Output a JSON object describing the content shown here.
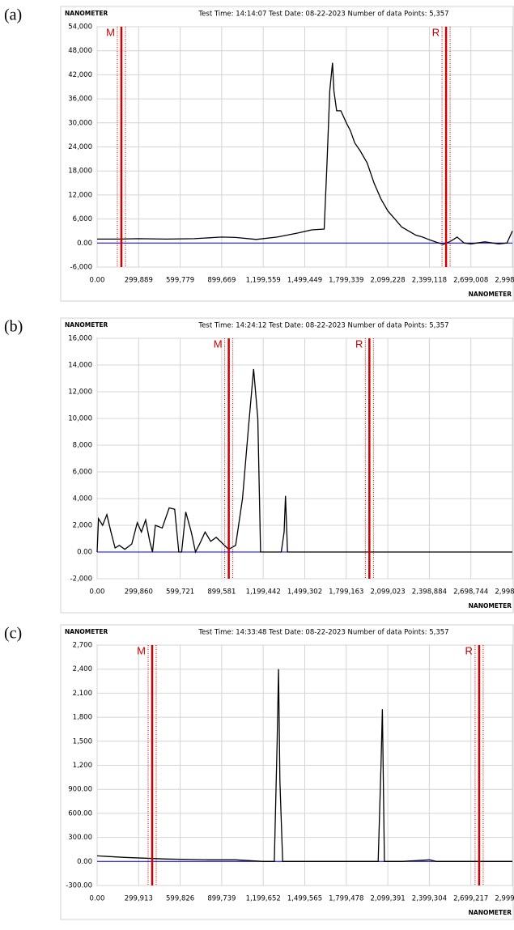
{
  "chart_data": [
    {
      "type": "line",
      "panel_label": "(a)",
      "y_label": "NANOMETER",
      "title": "Test Time: 14:14:07  Test Date: 08-22-2023  Number of data Points: 5,357",
      "x_label": "NANOMETER",
      "xlim": [
        0,
        2998898
      ],
      "ylim": [
        -6000,
        54000
      ],
      "xticks": [
        {
          "value": 0,
          "label": "0.00"
        },
        {
          "value": 299889,
          "label": "299,889"
        },
        {
          "value": 599779,
          "label": "599,779"
        },
        {
          "value": 899669,
          "label": "899,669"
        },
        {
          "value": 1199559,
          "label": "1,199,559"
        },
        {
          "value": 1499449,
          "label": "1,499,449"
        },
        {
          "value": 1799339,
          "label": "1,799,339"
        },
        {
          "value": 2099228,
          "label": "2,099,228"
        },
        {
          "value": 2399118,
          "label": "2,399,118"
        },
        {
          "value": 2699008,
          "label": "2,699,008"
        },
        {
          "value": 2998898,
          "label": "2,998,898"
        }
      ],
      "yticks": [
        {
          "value": 54000,
          "label": "54,000"
        },
        {
          "value": 48000,
          "label": "48,000"
        },
        {
          "value": 42000,
          "label": "42,000"
        },
        {
          "value": 36000,
          "label": "36,000"
        },
        {
          "value": 30000,
          "label": "30,000"
        },
        {
          "value": 24000,
          "label": "24,000"
        },
        {
          "value": 18000,
          "label": "18,000"
        },
        {
          "value": 12000,
          "label": "12,000"
        },
        {
          "value": 6000,
          "label": "6,000"
        },
        {
          "value": 0,
          "label": "0.00"
        },
        {
          "value": -6000,
          "label": "-6,000"
        }
      ],
      "grid": true,
      "zero_line_color": "#0000ff",
      "x": [
        0,
        150000,
        300000,
        500000,
        700000,
        900000,
        1000000,
        1150000,
        1300000,
        1450000,
        1550000,
        1640000,
        1660000,
        1680000,
        1700000,
        1710000,
        1730000,
        1760000,
        1800000,
        1830000,
        1860000,
        1900000,
        1950000,
        2000000,
        2050000,
        2100000,
        2150000,
        2200000,
        2250000,
        2300000,
        2350000,
        2400000,
        2450000,
        2500000,
        2550000,
        2600000,
        2650000,
        2700000,
        2800000,
        2900000,
        2960000,
        2998898
      ],
      "series": [
        {
          "color": "#000000",
          "values": [
            1000,
            1000,
            1100,
            1000,
            1100,
            1500,
            1400,
            900,
            1500,
            2500,
            3300,
            3500,
            20000,
            38000,
            45000,
            38000,
            33000,
            33000,
            30000,
            28000,
            25000,
            23000,
            20000,
            15000,
            11000,
            8000,
            6000,
            4000,
            3000,
            2000,
            1500,
            800,
            200,
            -300,
            400,
            1500,
            0,
            -200,
            300,
            -200,
            0,
            3000
          ]
        }
      ],
      "cursors": [
        {
          "label": "M",
          "x": 175000,
          "color": "#cc0000"
        },
        {
          "label": "R",
          "x": 2520000,
          "color": "#cc0000"
        }
      ]
    },
    {
      "type": "line",
      "panel_label": "(b)",
      "y_label": "NANOMETER",
      "title": "Test Time: 14:24:12  Test Date: 08-22-2023  Number of data Points: 5,357",
      "x_label": "NANOMETER",
      "xlim": [
        0,
        2998605
      ],
      "ylim": [
        -2000,
        16000
      ],
      "xticks": [
        {
          "value": 0,
          "label": "0.00"
        },
        {
          "value": 299860,
          "label": "299,860"
        },
        {
          "value": 599721,
          "label": "599,721"
        },
        {
          "value": 899581,
          "label": "899,581"
        },
        {
          "value": 1199442,
          "label": "1,199,442"
        },
        {
          "value": 1499302,
          "label": "1,499,302"
        },
        {
          "value": 1799163,
          "label": "1,799,163"
        },
        {
          "value": 2099023,
          "label": "2,099,023"
        },
        {
          "value": 2398884,
          "label": "2,398,884"
        },
        {
          "value": 2698744,
          "label": "2,698,744"
        },
        {
          "value": 2998605,
          "label": "2,998,605"
        }
      ],
      "yticks": [
        {
          "value": 16000,
          "label": "16,000"
        },
        {
          "value": 14000,
          "label": "14,000"
        },
        {
          "value": 12000,
          "label": "12,000"
        },
        {
          "value": 10000,
          "label": "10,000"
        },
        {
          "value": 8000,
          "label": "8,000"
        },
        {
          "value": 6000,
          "label": "6,000"
        },
        {
          "value": 4000,
          "label": "4,000"
        },
        {
          "value": 2000,
          "label": "2,000"
        },
        {
          "value": 0,
          "label": "0.00"
        },
        {
          "value": -2000,
          "label": "-2,000"
        }
      ],
      "grid": true,
      "zero_line_color": "#0000ff",
      "x": [
        0,
        10000,
        40000,
        70000,
        100000,
        130000,
        160000,
        200000,
        250000,
        290000,
        320000,
        350000,
        380000,
        400000,
        420000,
        470000,
        520000,
        560000,
        590000,
        610000,
        640000,
        680000,
        710000,
        740000,
        780000,
        820000,
        860000,
        900000,
        950000,
        1000000,
        1050000,
        1090000,
        1130000,
        1160000,
        1180000,
        1330000,
        1350000,
        1360000,
        1375000,
        1600000,
        2000000,
        2500000,
        2998605
      ],
      "series": [
        {
          "color": "#000000",
          "values": [
            0,
            2500,
            2000,
            2800,
            1500,
            300,
            500,
            200,
            600,
            2200,
            1500,
            2400,
            800,
            0,
            2000,
            1800,
            3300,
            3200,
            0,
            0,
            3000,
            1500,
            0,
            600,
            1500,
            800,
            1100,
            700,
            200,
            500,
            4000,
            9000,
            13700,
            10000,
            0,
            0,
            1500,
            4200,
            0,
            0,
            0,
            0,
            0
          ]
        }
      ],
      "cursors": [
        {
          "label": "M",
          "x": 950600,
          "color": "#cc0000"
        },
        {
          "label": "R",
          "x": 1966000,
          "color": "#cc0000"
        }
      ]
    },
    {
      "type": "line",
      "panel_label": "(c)",
      "y_label": "NANOMETER",
      "title": "Test Time: 14:33:48  Test Date: 08-22-2023  Number of data Points: 5,357",
      "x_label": "NANOMETER",
      "xlim": [
        0,
        2999130
      ],
      "ylim": [
        -300,
        2700
      ],
      "xticks": [
        {
          "value": 0,
          "label": "0.00"
        },
        {
          "value": 299913,
          "label": "299,913"
        },
        {
          "value": 599826,
          "label": "599,826"
        },
        {
          "value": 899739,
          "label": "899,739"
        },
        {
          "value": 1199652,
          "label": "1,199,652"
        },
        {
          "value": 1499565,
          "label": "1,499,565"
        },
        {
          "value": 1799478,
          "label": "1,799,478"
        },
        {
          "value": 2099391,
          "label": "2,099,391"
        },
        {
          "value": 2399304,
          "label": "2,399,304"
        },
        {
          "value": 2699217,
          "label": "2,699,217"
        },
        {
          "value": 2999130,
          "label": "2,999,130"
        }
      ],
      "yticks": [
        {
          "value": 2700,
          "label": "2,700"
        },
        {
          "value": 2400,
          "label": "2,400"
        },
        {
          "value": 2100,
          "label": "2,100"
        },
        {
          "value": 1800,
          "label": "1,800"
        },
        {
          "value": 1500,
          "label": "1,500"
        },
        {
          "value": 1200,
          "label": "1,200"
        },
        {
          "value": 900,
          "label": "900.00"
        },
        {
          "value": 600,
          "label": "600.00"
        },
        {
          "value": 300,
          "label": "300.00"
        },
        {
          "value": 0,
          "label": "0.00"
        },
        {
          "value": -300,
          "label": "-300.00"
        }
      ],
      "grid": true,
      "zero_line_color": "#0000ff",
      "x": [
        0,
        200000,
        500000,
        800000,
        1000000,
        1200000,
        1280000,
        1300000,
        1310000,
        1320000,
        1340000,
        1500000,
        1800000,
        2030000,
        2050000,
        2060000,
        2075000,
        2200000,
        2400000,
        2450000,
        2700000,
        2999130
      ],
      "series": [
        {
          "color": "#000000",
          "values": [
            70,
            50,
            30,
            20,
            20,
            0,
            0,
            1500,
            2400,
            1000,
            0,
            0,
            0,
            0,
            1200,
            1900,
            0,
            0,
            20,
            0,
            0,
            0
          ]
        }
      ],
      "cursors": [
        {
          "label": "M",
          "x": 397500,
          "color": "#cc0000"
        },
        {
          "label": "R",
          "x": 2759000,
          "color": "#cc0000"
        }
      ]
    }
  ]
}
